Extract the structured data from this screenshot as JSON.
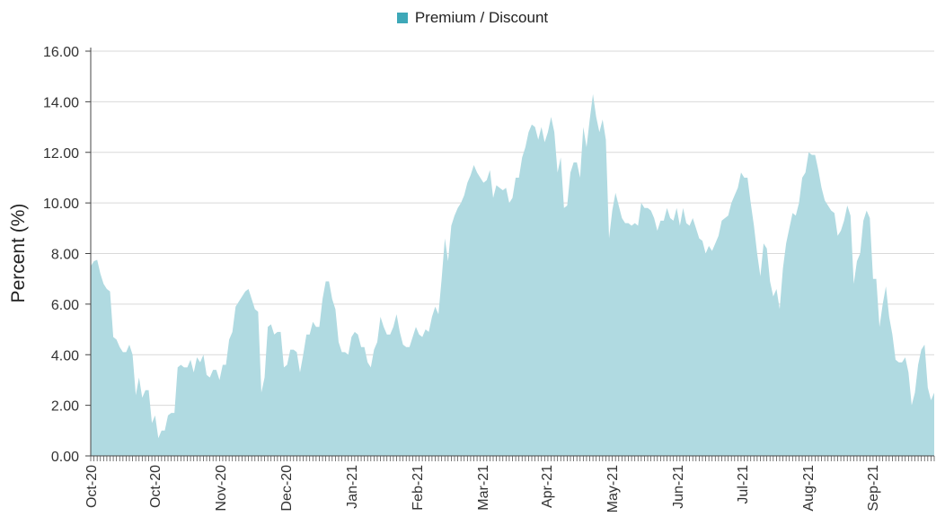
{
  "chart_data": {
    "type": "area",
    "title": "",
    "ylabel": "Percent (%)",
    "xlabel": "",
    "ylim": [
      0,
      16
    ],
    "yticks": [
      "0.00",
      "2.00",
      "4.00",
      "6.00",
      "8.00",
      "10.00",
      "12.00",
      "14.00",
      "16.00"
    ],
    "grid": true,
    "legend_position": "top-center",
    "xtick_labels": [
      "Oct-20",
      "Oct-20",
      "Nov-20",
      "Dec-20",
      "Jan-21",
      "Feb-21",
      "Mar-21",
      "Apr-21",
      "May-21",
      "Jun-21",
      "Jul-21",
      "Aug-21",
      "Sep-21"
    ],
    "series": [
      {
        "name": "Premium / Discount",
        "color": "#3ea8b8",
        "fill": "#b0dae1",
        "values": [
          7.5,
          7.7,
          7.75,
          7.2,
          6.8,
          6.6,
          6.5,
          4.7,
          4.6,
          4.3,
          4.1,
          4.1,
          4.4,
          4.0,
          2.4,
          3.1,
          2.3,
          2.6,
          2.6,
          1.3,
          1.6,
          0.7,
          1.0,
          1.0,
          1.6,
          1.7,
          1.7,
          3.5,
          3.6,
          3.5,
          3.5,
          3.8,
          3.3,
          3.9,
          3.7,
          4.0,
          3.2,
          3.1,
          3.4,
          3.4,
          3.0,
          3.6,
          3.6,
          4.6,
          4.9,
          5.9,
          6.1,
          6.3,
          6.5,
          6.6,
          6.2,
          5.8,
          5.7,
          2.5,
          3.1,
          5.1,
          5.2,
          4.8,
          4.9,
          4.9,
          3.5,
          3.6,
          4.2,
          4.2,
          4.1,
          3.3,
          4.0,
          4.8,
          4.8,
          5.3,
          5.1,
          5.1,
          6.2,
          6.9,
          6.9,
          6.2,
          5.8,
          4.5,
          4.1,
          4.1,
          4.0,
          4.7,
          4.9,
          4.8,
          4.3,
          4.3,
          3.7,
          3.5,
          4.2,
          4.5,
          5.5,
          5.1,
          4.8,
          4.8,
          5.1,
          5.6,
          4.9,
          4.4,
          4.3,
          4.3,
          4.7,
          5.1,
          4.8,
          4.7,
          5.0,
          4.9,
          5.5,
          5.9,
          5.6,
          7.0,
          8.6,
          7.7,
          9.1,
          9.5,
          9.8,
          10.0,
          10.3,
          10.8,
          11.1,
          11.5,
          11.2,
          11.0,
          10.8,
          10.9,
          11.3,
          10.2,
          10.7,
          10.6,
          10.5,
          10.6,
          10.0,
          10.2,
          11.0,
          11.0,
          11.8,
          12.2,
          12.8,
          13.1,
          13.0,
          12.5,
          13.0,
          12.4,
          12.8,
          13.4,
          12.8,
          11.2,
          11.8,
          9.8,
          9.9,
          11.2,
          11.6,
          11.6,
          11.0,
          13.0,
          12.2,
          13.3,
          14.3,
          13.4,
          12.8,
          13.3,
          12.5,
          8.6,
          9.7,
          10.4,
          9.9,
          9.4,
          9.2,
          9.2,
          9.1,
          9.2,
          9.1,
          10.0,
          9.8,
          9.8,
          9.7,
          9.4,
          8.9,
          9.3,
          9.3,
          9.8,
          9.4,
          9.3,
          9.8,
          9.1,
          9.8,
          9.2,
          9.1,
          9.4,
          9.0,
          8.6,
          8.5,
          8.0,
          8.3,
          8.1,
          8.4,
          8.7,
          9.3,
          9.4,
          9.5,
          10.0,
          10.3,
          10.6,
          11.2,
          11.0,
          11.0,
          10.0,
          9.1,
          8.0,
          7.1,
          8.4,
          8.2,
          6.9,
          6.3,
          6.6,
          5.8,
          7.4,
          8.4,
          9.0,
          9.6,
          9.5,
          10.0,
          11.0,
          11.2,
          12.0,
          11.9,
          11.9,
          11.3,
          10.6,
          10.1,
          9.9,
          9.7,
          9.6,
          8.7,
          8.9,
          9.3,
          9.9,
          9.5,
          6.8,
          7.7,
          8.0,
          9.3,
          9.7,
          9.4,
          7.0,
          7.0,
          5.1,
          6.0,
          6.7,
          5.5,
          4.8,
          3.8,
          3.7,
          3.7,
          3.9,
          3.3,
          2.0,
          2.5,
          3.6,
          4.2,
          4.4,
          2.7,
          2.2,
          2.5
        ]
      }
    ]
  }
}
